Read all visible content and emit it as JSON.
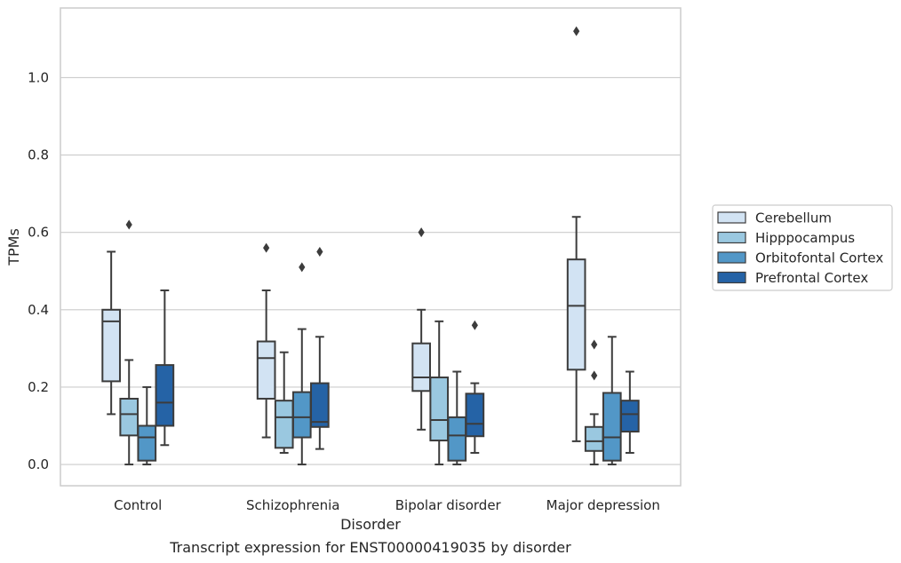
{
  "chart_data": {
    "type": "box",
    "title": "",
    "xlabel": "Disorder",
    "ylabel": "TPMs",
    "caption": "Transcript expression for ENST00000419035 by disorder",
    "categories": [
      "Control",
      "Schizophrenia",
      "Bipolar disorder",
      "Major depression"
    ],
    "yticks": [
      "0.0",
      "0.2",
      "0.4",
      "0.6",
      "0.8",
      "1.0"
    ],
    "ytick_values": [
      0.0,
      0.2,
      0.4,
      0.6,
      0.8,
      1.0
    ],
    "ylim": [
      -0.055,
      1.18
    ],
    "grid": true,
    "legend_position": "right",
    "series": [
      {
        "name": "Cerebellum",
        "color": "#d2e3f3",
        "boxes": [
          {
            "whisker_low": 0.13,
            "q1": 0.215,
            "median": 0.37,
            "q3": 0.4,
            "whisker_high": 0.55,
            "outliers": []
          },
          {
            "whisker_low": 0.07,
            "q1": 0.17,
            "median": 0.275,
            "q3": 0.318,
            "whisker_high": 0.45,
            "outliers": [
              0.56
            ]
          },
          {
            "whisker_low": 0.09,
            "q1": 0.19,
            "median": 0.225,
            "q3": 0.313,
            "whisker_high": 0.4,
            "outliers": [
              0.6
            ]
          },
          {
            "whisker_low": 0.06,
            "q1": 0.245,
            "median": 0.41,
            "q3": 0.53,
            "whisker_high": 0.64,
            "outliers": [
              1.12
            ]
          }
        ]
      },
      {
        "name": "Hipppocampus",
        "color": "#9ac8e0",
        "boxes": [
          {
            "whisker_low": 0.0,
            "q1": 0.075,
            "median": 0.13,
            "q3": 0.17,
            "whisker_high": 0.27,
            "outliers": [
              0.62
            ]
          },
          {
            "whisker_low": 0.03,
            "q1": 0.043,
            "median": 0.122,
            "q3": 0.165,
            "whisker_high": 0.29,
            "outliers": []
          },
          {
            "whisker_low": 0.0,
            "q1": 0.062,
            "median": 0.115,
            "q3": 0.225,
            "whisker_high": 0.37,
            "outliers": []
          },
          {
            "whisker_low": 0.0,
            "q1": 0.035,
            "median": 0.06,
            "q3": 0.097,
            "whisker_high": 0.13,
            "outliers": [
              0.23,
              0.31
            ]
          }
        ]
      },
      {
        "name": "Orbitofontal Cortex",
        "color": "#5297c7",
        "boxes": [
          {
            "whisker_low": 0.0,
            "q1": 0.01,
            "median": 0.07,
            "q3": 0.1,
            "whisker_high": 0.2,
            "outliers": []
          },
          {
            "whisker_low": 0.0,
            "q1": 0.07,
            "median": 0.122,
            "q3": 0.187,
            "whisker_high": 0.35,
            "outliers": [
              0.51
            ]
          },
          {
            "whisker_low": 0.0,
            "q1": 0.01,
            "median": 0.075,
            "q3": 0.122,
            "whisker_high": 0.24,
            "outliers": []
          },
          {
            "whisker_low": 0.0,
            "q1": 0.01,
            "median": 0.07,
            "q3": 0.185,
            "whisker_high": 0.33,
            "outliers": []
          }
        ]
      },
      {
        "name": "Prefrontal Cortex",
        "color": "#2563a6",
        "boxes": [
          {
            "whisker_low": 0.05,
            "q1": 0.1,
            "median": 0.16,
            "q3": 0.257,
            "whisker_high": 0.45,
            "outliers": []
          },
          {
            "whisker_low": 0.04,
            "q1": 0.097,
            "median": 0.11,
            "q3": 0.21,
            "whisker_high": 0.33,
            "outliers": [
              0.55
            ]
          },
          {
            "whisker_low": 0.03,
            "q1": 0.073,
            "median": 0.105,
            "q3": 0.183,
            "whisker_high": 0.21,
            "outliers": [
              0.36
            ]
          },
          {
            "whisker_low": 0.03,
            "q1": 0.085,
            "median": 0.13,
            "q3": 0.165,
            "whisker_high": 0.24,
            "outliers": []
          }
        ]
      }
    ]
  }
}
